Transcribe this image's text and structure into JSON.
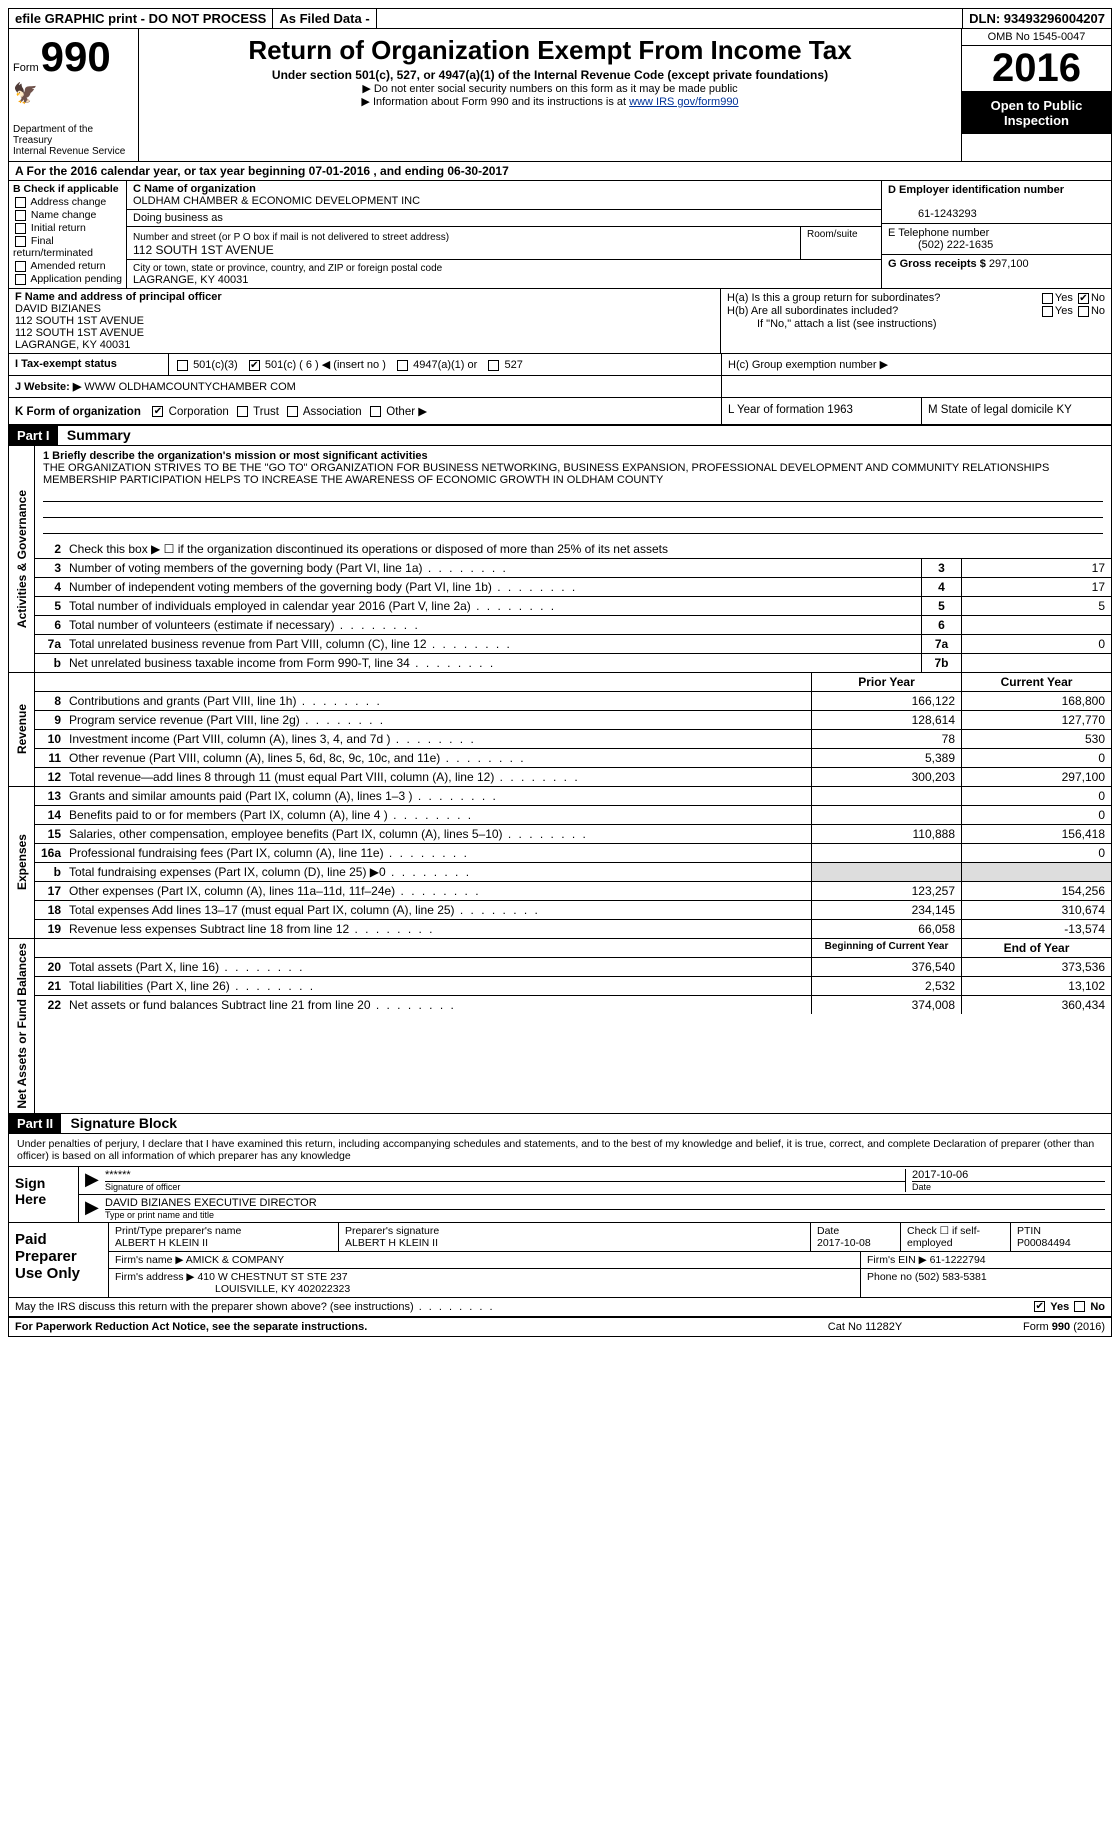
{
  "header": {
    "efile": "efile GRAPHIC print - DO NOT PROCESS",
    "asfiled": "As Filed Data -",
    "dln": "DLN: 93493296004207",
    "form_word": "Form",
    "form_num": "990",
    "dept": "Department of the Treasury",
    "irs": "Internal Revenue Service",
    "title": "Return of Organization Exempt From Income Tax",
    "sub": "Under section 501(c), 527, or 4947(a)(1) of the Internal Revenue Code (except private foundations)",
    "arrow1": "▶ Do not enter social security numbers on this form as it may be made public",
    "arrow2_pre": "▶ Information about Form 990 and its instructions is at ",
    "arrow2_link": "www IRS gov/form990",
    "omb": "OMB No 1545-0047",
    "year": "2016",
    "open": "Open to Public Inspection"
  },
  "row_a": "A  For the 2016 calendar year, or tax year beginning 07-01-2016   , and ending 06-30-2017",
  "box_b": {
    "hdr": "B Check if applicable",
    "items": [
      "Address change",
      "Name change",
      "Initial return",
      "Final return/terminated",
      "Amended return",
      "Application pending"
    ]
  },
  "box_c": {
    "label": "C Name of organization",
    "name": "OLDHAM CHAMBER & ECONOMIC DEVELOPMENT INC",
    "dba_label": "Doing business as",
    "addr_label": "Number and street (or P O  box if mail is not delivered to street address)",
    "room_label": "Room/suite",
    "addr": "112 SOUTH 1ST AVENUE",
    "city_label": "City or town, state or province, country, and ZIP or foreign postal code",
    "city": "LAGRANGE, KY  40031"
  },
  "box_d": {
    "label": "D Employer identification number",
    "val": "61-1243293"
  },
  "box_e": {
    "label": "E Telephone number",
    "val": "(502) 222-1635"
  },
  "box_g": {
    "label": "G Gross receipts $",
    "val": "297,100"
  },
  "box_f": {
    "label": "F  Name and address of principal officer",
    "lines": [
      "DAVID BIZIANES",
      "112 SOUTH 1ST AVENUE",
      "112 SOUTH 1ST AVENUE",
      "LAGRANGE, KY  40031"
    ]
  },
  "box_h": {
    "a": "H(a)  Is this a group return for subordinates?",
    "b": "H(b)  Are all subordinates included?",
    "note": "If \"No,\" attach a list  (see instructions)",
    "c": "H(c)  Group exemption number ▶",
    "yes": "Yes",
    "no": "No"
  },
  "row_i": {
    "label": "I  Tax-exempt status",
    "opts": [
      "501(c)(3)",
      "501(c) ( 6 ) ◀ (insert no )",
      "4947(a)(1) or",
      "527"
    ]
  },
  "row_j": {
    "label": "J  Website: ▶",
    "val": "WWW OLDHAMCOUNTYCHAMBER COM"
  },
  "row_k": {
    "label": "K Form of organization",
    "opts": [
      "Corporation",
      "Trust",
      "Association",
      "Other ▶"
    ],
    "l": "L Year of formation  1963",
    "m": "M State of legal domicile  KY"
  },
  "part1": {
    "hdr": "Part I",
    "title": "Summary",
    "q1": "1 Briefly describe the organization's mission or most significant activities",
    "mission": "THE ORGANIZATION STRIVES TO BE THE \"GO TO\" ORGANIZATION FOR BUSINESS NETWORKING, BUSINESS EXPANSION, PROFESSIONAL DEVELOPMENT AND COMMUNITY RELATIONSHIPS  MEMBERSHIP PARTICIPATION HELPS TO INCREASE THE AWARENESS OF ECONOMIC GROWTH IN OLDHAM COUNTY",
    "q2": "Check this box ▶ ☐ if the organization discontinued its operations or disposed of more than 25% of its net assets",
    "gov_label": "Activities & Governance",
    "rev_label": "Revenue",
    "exp_label": "Expenses",
    "net_label": "Net Assets or Fund Balances",
    "lines_gov": [
      {
        "n": "3",
        "d": "Number of voting members of the governing body (Part VI, line 1a)",
        "b": "3",
        "v": "17"
      },
      {
        "n": "4",
        "d": "Number of independent voting members of the governing body (Part VI, line 1b)",
        "b": "4",
        "v": "17"
      },
      {
        "n": "5",
        "d": "Total number of individuals employed in calendar year 2016 (Part V, line 2a)",
        "b": "5",
        "v": "5"
      },
      {
        "n": "6",
        "d": "Total number of volunteers (estimate if necessary)",
        "b": "6",
        "v": ""
      },
      {
        "n": "7a",
        "d": "Total unrelated business revenue from Part VIII, column (C), line 12",
        "b": "7a",
        "v": "0"
      },
      {
        "n": "b",
        "d": "Net unrelated business taxable income from Form 990-T, line 34",
        "b": "7b",
        "v": ""
      }
    ],
    "col_py": "Prior Year",
    "col_cy": "Current Year",
    "lines_rev": [
      {
        "n": "8",
        "d": "Contributions and grants (Part VIII, line 1h)",
        "py": "166,122",
        "cy": "168,800"
      },
      {
        "n": "9",
        "d": "Program service revenue (Part VIII, line 2g)",
        "py": "128,614",
        "cy": "127,770"
      },
      {
        "n": "10",
        "d": "Investment income (Part VIII, column (A), lines 3, 4, and 7d )",
        "py": "78",
        "cy": "530"
      },
      {
        "n": "11",
        "d": "Other revenue (Part VIII, column (A), lines 5, 6d, 8c, 9c, 10c, and 11e)",
        "py": "5,389",
        "cy": "0"
      },
      {
        "n": "12",
        "d": "Total revenue—add lines 8 through 11 (must equal Part VIII, column (A), line 12)",
        "py": "300,203",
        "cy": "297,100"
      }
    ],
    "lines_exp": [
      {
        "n": "13",
        "d": "Grants and similar amounts paid (Part IX, column (A), lines 1–3 )",
        "py": "",
        "cy": "0"
      },
      {
        "n": "14",
        "d": "Benefits paid to or for members (Part IX, column (A), line 4 )",
        "py": "",
        "cy": "0"
      },
      {
        "n": "15",
        "d": "Salaries, other compensation, employee benefits (Part IX, column (A), lines 5–10)",
        "py": "110,888",
        "cy": "156,418"
      },
      {
        "n": "16a",
        "d": "Professional fundraising fees (Part IX, column (A), line 11e)",
        "py": "",
        "cy": "0"
      },
      {
        "n": "b",
        "d": "Total fundraising expenses (Part IX, column (D), line 25) ▶0",
        "py": "shade",
        "cy": "shade"
      },
      {
        "n": "17",
        "d": "Other expenses (Part IX, column (A), lines 11a–11d, 11f–24e)",
        "py": "123,257",
        "cy": "154,256"
      },
      {
        "n": "18",
        "d": "Total expenses  Add lines 13–17 (must equal Part IX, column (A), line 25)",
        "py": "234,145",
        "cy": "310,674"
      },
      {
        "n": "19",
        "d": "Revenue less expenses  Subtract line 18 from line 12",
        "py": "66,058",
        "cy": "-13,574"
      }
    ],
    "col_boy": "Beginning of Current Year",
    "col_eoy": "End of Year",
    "lines_net": [
      {
        "n": "20",
        "d": "Total assets (Part X, line 16)",
        "py": "376,540",
        "cy": "373,536"
      },
      {
        "n": "21",
        "d": "Total liabilities (Part X, line 26)",
        "py": "2,532",
        "cy": "13,102"
      },
      {
        "n": "22",
        "d": "Net assets or fund balances  Subtract line 21 from line 20",
        "py": "374,008",
        "cy": "360,434"
      }
    ]
  },
  "part2": {
    "hdr": "Part II",
    "title": "Signature Block",
    "perjury": "Under penalties of perjury, I declare that I have examined this return, including accompanying schedules and statements, and to the best of my knowledge and belief, it is true, correct, and complete  Declaration of preparer (other than officer) is based on all information of which preparer has any knowledge",
    "sign_here": "Sign Here",
    "stars": "******",
    "sig_of": "Signature of officer",
    "date_lbl": "Date",
    "sig_date": "2017-10-06",
    "name_title": "DAVID BIZIANES  EXECUTIVE DIRECTOR",
    "type_name": "Type or print name and title",
    "paid": "Paid Preparer Use Only",
    "prep_name_lbl": "Print/Type preparer's name",
    "prep_name": "ALBERT H KLEIN II",
    "prep_sig_lbl": "Preparer's signature",
    "prep_sig": "ALBERT H KLEIN II",
    "prep_date_lbl": "Date",
    "prep_date": "2017-10-08",
    "self_emp": "Check ☐ if self-employed",
    "ptin_lbl": "PTIN",
    "ptin": "P00084494",
    "firm_name_lbl": "Firm's name      ▶",
    "firm_name": "AMICK & COMPANY",
    "firm_ein_lbl": "Firm's EIN ▶",
    "firm_ein": "61-1222794",
    "firm_addr_lbl": "Firm's address ▶",
    "firm_addr": "410 W CHESTNUT ST STE 237",
    "firm_city": "LOUISVILLE, KY  402022323",
    "phone_lbl": "Phone no",
    "phone": "(502) 583-5381"
  },
  "footer": {
    "discuss": "May the IRS discuss this return with the preparer shown above? (see instructions)",
    "yes": "Yes",
    "no": "No",
    "pra": "For Paperwork Reduction Act Notice, see the separate instructions.",
    "cat": "Cat No  11282Y",
    "form": "Form 990 (2016)"
  }
}
